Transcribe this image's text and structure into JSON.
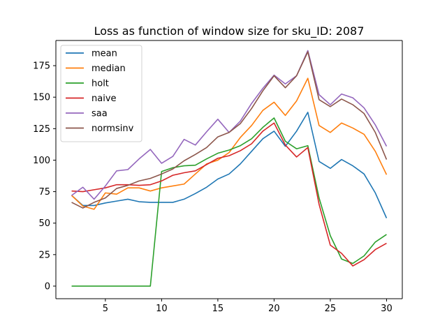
{
  "chart_data": {
    "type": "line",
    "title": "Loss as function of window size for sku_ID: 2087",
    "xlabel": "",
    "ylabel": "",
    "xlim": [
      0.6,
      31.4
    ],
    "ylim": [
      -10,
      195
    ],
    "xticks": [
      5,
      10,
      15,
      20,
      25,
      30
    ],
    "yticks": [
      0,
      25,
      50,
      75,
      100,
      125,
      150,
      175
    ],
    "legend_position": "top-left",
    "grid": false,
    "x": [
      2,
      3,
      4,
      5,
      6,
      7,
      8,
      9,
      10,
      11,
      12,
      13,
      14,
      15,
      16,
      17,
      18,
      19,
      20,
      21,
      22,
      23,
      24,
      25,
      26,
      27,
      28,
      29,
      30
    ],
    "series": [
      {
        "name": "mean",
        "color": "#1f77b4",
        "values": [
          72,
          64,
          64,
          66,
          67.5,
          69,
          67,
          66.5,
          66.5,
          66.5,
          69,
          73.5,
          78.5,
          85,
          89,
          97,
          107,
          117,
          123,
          111,
          123,
          138,
          99,
          93.5,
          100.5,
          95.5,
          89,
          74,
          54
        ]
      },
      {
        "name": "median",
        "color": "#ff7f0e",
        "values": [
          72,
          63.5,
          61,
          74,
          73,
          78,
          78,
          75.5,
          78,
          79.5,
          81,
          89,
          97,
          100,
          106,
          118,
          127.5,
          139.5,
          146,
          135.5,
          147,
          165,
          127.5,
          122,
          129.5,
          125.5,
          120.5,
          107,
          88.5
        ]
      },
      {
        "name": "holt",
        "color": "#2ca02c",
        "values": [
          0,
          0,
          0,
          0,
          0,
          0,
          0,
          0,
          91,
          94,
          95.5,
          96,
          101,
          105.5,
          108,
          111.5,
          117,
          126,
          133.5,
          115,
          109,
          111.5,
          70,
          40,
          21.5,
          18,
          24,
          35,
          41
        ]
      },
      {
        "name": "naive",
        "color": "#d62728",
        "values": [
          75.5,
          75,
          76.5,
          78,
          80.5,
          80.5,
          80,
          80.5,
          83.5,
          88,
          90,
          91.5,
          96.5,
          101.5,
          103.5,
          107.5,
          113,
          123,
          129.5,
          112,
          102.5,
          110,
          65,
          32.5,
          26,
          16,
          21,
          29,
          34
        ]
      },
      {
        "name": "saa",
        "color": "#9467bd",
        "values": [
          72,
          78.5,
          69,
          79.5,
          91.5,
          92.5,
          101,
          108.5,
          97.5,
          103,
          116.5,
          112,
          122.5,
          132.5,
          122,
          131,
          145,
          157,
          167.5,
          160.5,
          167,
          187,
          152,
          144,
          152.5,
          149.5,
          141.5,
          128,
          111
        ]
      },
      {
        "name": "normsinv",
        "color": "#8c564b",
        "values": [
          66.5,
          62,
          66.5,
          70,
          77.5,
          80,
          83.5,
          85.5,
          89,
          93,
          99.5,
          104.5,
          110,
          118.5,
          122,
          129,
          141,
          155,
          167,
          157.5,
          167,
          186,
          148,
          142.5,
          148.5,
          144,
          137,
          122,
          100.5
        ]
      }
    ]
  }
}
